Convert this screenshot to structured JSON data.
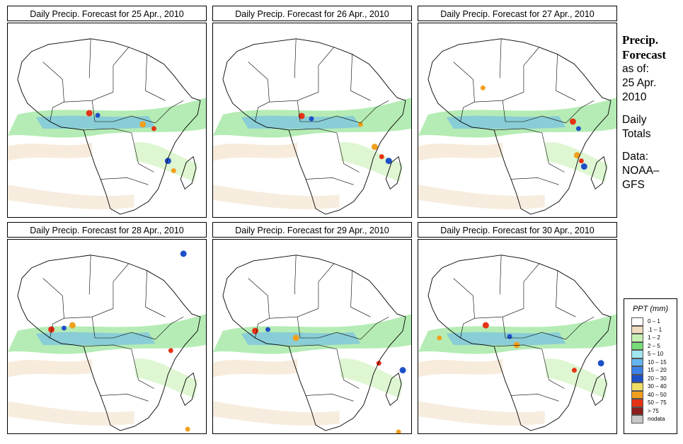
{
  "panels": [
    {
      "title": "Daily Precip. Forecast for  25 Apr., 2010"
    },
    {
      "title": "Daily Precip. Forecast for  26 Apr., 2010"
    },
    {
      "title": "Daily Precip. Forecast for  27 Apr., 2010"
    },
    {
      "title": "Daily Precip. Forecast for  28 Apr., 2010"
    },
    {
      "title": "Daily Precip. Forecast for  29 Apr., 2010"
    },
    {
      "title": "Daily Precip. Forecast for  30 Apr., 2010"
    }
  ],
  "sidebar": {
    "heading1": "Precip.",
    "heading2": "Forecast",
    "asof1": "as of:",
    "asof2": "25 Apr.",
    "asof3": "2010",
    "daily1": "Daily",
    "daily2": "Totals",
    "data1": "Data:",
    "data2": "NOAA–",
    "data3": "GFS"
  },
  "legend": {
    "title": "PPT (mm)",
    "items": [
      {
        "label": "0 – 1",
        "color": "#ffffff"
      },
      {
        "label": ".1 – 1",
        "color": "#f0dcc0"
      },
      {
        "label": "1 – 2",
        "color": "#c8f0b4"
      },
      {
        "label": "2 – 5",
        "color": "#78dc78"
      },
      {
        "label": "5 – 10",
        "color": "#a0e6f0"
      },
      {
        "label": "10 – 15",
        "color": "#64b4f0"
      },
      {
        "label": "15 – 20",
        "color": "#3c82e6"
      },
      {
        "label": "20 – 30",
        "color": "#1e50c8"
      },
      {
        "label": "30 – 40",
        "color": "#f0dc64"
      },
      {
        "label": "40 – 50",
        "color": "#f0a01e"
      },
      {
        "label": "50 – 75",
        "color": "#e63214"
      },
      {
        "label": "> 75",
        "color": "#8c1e1e"
      },
      {
        "label": "nodata",
        "color": "#c8c8c8"
      }
    ]
  }
}
